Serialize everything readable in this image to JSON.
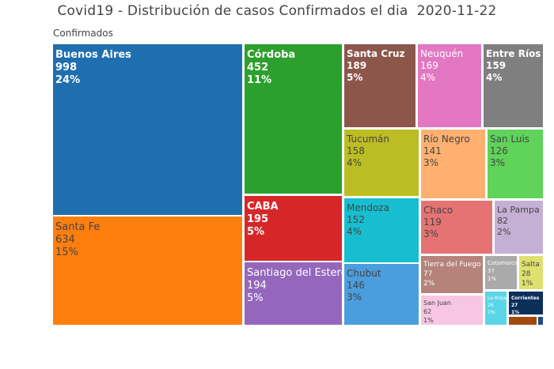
{
  "chart_data": {
    "type": "treemap",
    "title": "Covid19 - Distribución de casos Confirmados el dia  2020-11-22",
    "root_label": "Confirmados",
    "series": [
      {
        "name": "Buenos Aires",
        "value": 998,
        "pct": "24%",
        "color": "#1f6fb0"
      },
      {
        "name": "Santa Fe",
        "value": 634,
        "pct": "15%",
        "color": "#ff7f0e"
      },
      {
        "name": "Córdoba",
        "value": 452,
        "pct": "11%",
        "color": "#2ca02c"
      },
      {
        "name": "CABA",
        "value": 195,
        "pct": "5%",
        "color": "#d62728"
      },
      {
        "name": "Santiago del Estero",
        "value": 194,
        "pct": "5%",
        "color": "#9467bd"
      },
      {
        "name": "Santa Cruz",
        "value": 189,
        "pct": "5%",
        "color": "#8c564b"
      },
      {
        "name": "Neuquén",
        "value": 169,
        "pct": "4%",
        "color": "#e377c2"
      },
      {
        "name": "Entre Ríos",
        "value": 159,
        "pct": "4%",
        "color": "#7f7f7f"
      },
      {
        "name": "Tucumán",
        "value": 158,
        "pct": "4%",
        "color": "#bcbd22"
      },
      {
        "name": "Río Negro",
        "value": 141,
        "pct": "3%",
        "color": "#ffb070"
      },
      {
        "name": "San Luis",
        "value": 126,
        "pct": "3%",
        "color": "#5fd35a"
      },
      {
        "name": "Mendoza",
        "value": 152,
        "pct": "4%",
        "color": "#17becf"
      },
      {
        "name": "Chubut",
        "value": 146,
        "pct": "3%",
        "color": "#4b9ede"
      },
      {
        "name": "Chaco",
        "value": 119,
        "pct": "3%",
        "color": "#e57373"
      },
      {
        "name": "La Pampa",
        "value": 82,
        "pct": "2%",
        "color": "#c5b0d5"
      },
      {
        "name": "Tierra del Fuego",
        "value": 77,
        "pct": "2%",
        "color": "#b5837a"
      },
      {
        "name": "Catamarca",
        "value": 37,
        "pct": "1%",
        "color": "#aaaaaa"
      },
      {
        "name": "Salta",
        "value": 28,
        "pct": "1%",
        "color": "#e0e070"
      },
      {
        "name": "San Juan",
        "value": 62,
        "pct": "1%",
        "color": "#f7c6e3"
      },
      {
        "name": "La Rioja",
        "value": 26,
        "pct": "1%",
        "color": "#5ad6e6"
      },
      {
        "name": "Corrientes",
        "value": 27,
        "pct": "1%",
        "color": "#0c2f5a"
      },
      {
        "name": "",
        "value": null,
        "pct": "",
        "color": "#a04a10"
      },
      {
        "name": "",
        "value": null,
        "pct": "",
        "color": "#1f4a8a"
      }
    ]
  }
}
